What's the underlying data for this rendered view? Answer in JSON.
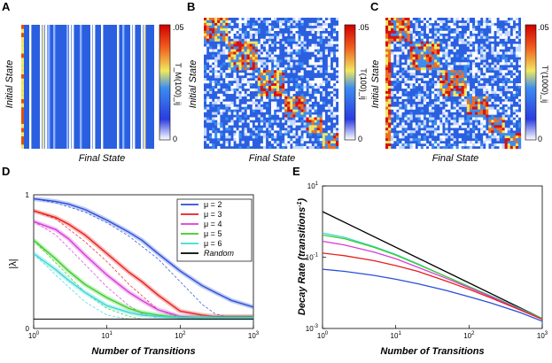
{
  "chart_data": [
    {
      "panel": "A",
      "type": "heatmap",
      "xlabel": "Final State",
      "ylabel": "Initial State",
      "colorbar": {
        "label": "T_M(100)_ij",
        "min": "0",
        "max": ".05"
      },
      "colors": {
        "low": "#2a5fe0",
        "mid": "#f0e88a",
        "high": "#e01010"
      },
      "description_kind": "random-walk transition matrix after 100 steps"
    },
    {
      "panel": "B",
      "type": "heatmap",
      "xlabel": "Final State",
      "ylabel": "Initial State",
      "colorbar": {
        "label": "T(100)_ij",
        "min": "0",
        "max": ".05"
      }
    },
    {
      "panel": "C",
      "type": "heatmap",
      "xlabel": "Final State",
      "ylabel": "Initial State",
      "colorbar": {
        "label": "T'(1000)_ij",
        "min": "0",
        "max": ".05"
      }
    },
    {
      "panel": "D",
      "type": "line",
      "xscale": "log",
      "xlim": [
        1,
        1000
      ],
      "ylim": [
        0,
        1
      ],
      "xlabel": "Number of Transitions",
      "ylabel": "|λ|",
      "xticks": [
        {
          "v": 1,
          "base": "10",
          "exp": "0"
        },
        {
          "v": 10,
          "base": "10",
          "exp": "1"
        },
        {
          "v": 100,
          "base": "10",
          "exp": "2"
        },
        {
          "v": 1000,
          "base": "10",
          "exp": "3"
        }
      ],
      "yticks": [
        {
          "v": 0,
          "label": "0"
        },
        {
          "v": 1,
          "label": "1"
        }
      ],
      "series": [
        {
          "name": "μ = 2",
          "color": "#2a4fd8",
          "x": [
            1,
            2,
            3,
            5,
            10,
            20,
            30,
            50,
            100,
            200,
            300,
            500,
            1000
          ],
          "y": [
            0.97,
            0.95,
            0.93,
            0.89,
            0.81,
            0.72,
            0.66,
            0.56,
            0.43,
            0.32,
            0.27,
            0.21,
            0.16
          ]
        },
        {
          "name": "μ = 3",
          "color": "#e81e1e",
          "x": [
            1,
            2,
            3,
            5,
            10,
            20,
            30,
            50,
            100,
            200,
            300,
            500,
            1000
          ],
          "y": [
            0.88,
            0.83,
            0.78,
            0.7,
            0.56,
            0.42,
            0.35,
            0.25,
            0.13,
            0.1,
            0.09,
            0.09,
            0.09
          ]
        },
        {
          "name": "μ = 4",
          "color": "#d83cd8",
          "x": [
            1,
            2,
            3,
            5,
            10,
            20,
            30,
            50,
            100,
            200,
            300,
            500,
            1000
          ],
          "y": [
            0.8,
            0.74,
            0.67,
            0.55,
            0.4,
            0.27,
            0.21,
            0.14,
            0.09,
            0.08,
            0.08,
            0.08,
            0.08
          ]
        },
        {
          "name": "μ = 5",
          "color": "#3ccc28",
          "x": [
            1,
            2,
            3,
            5,
            10,
            20,
            30,
            50,
            100,
            200,
            300,
            500,
            1000
          ],
          "y": [
            0.66,
            0.52,
            0.43,
            0.33,
            0.23,
            0.15,
            0.12,
            0.1,
            0.08,
            0.08,
            0.08,
            0.08,
            0.08
          ]
        },
        {
          "name": "μ = 6",
          "color": "#3cd8d8",
          "x": [
            1,
            2,
            3,
            5,
            10,
            20,
            30,
            50,
            100,
            200,
            300,
            500,
            1000
          ],
          "y": [
            0.56,
            0.44,
            0.36,
            0.27,
            0.17,
            0.12,
            0.1,
            0.09,
            0.08,
            0.08,
            0.08,
            0.08,
            0.08
          ]
        },
        {
          "name": "Random",
          "color": "#000000",
          "x": [
            1,
            1000
          ],
          "y": [
            0.07,
            0.07
          ]
        }
      ],
      "dashed_series": [
        {
          "color": "#2a4fd8",
          "x": [
            1,
            2,
            5,
            10,
            20,
            50,
            100,
            200,
            300,
            500
          ],
          "y": [
            0.97,
            0.94,
            0.87,
            0.79,
            0.69,
            0.52,
            0.35,
            0.18,
            0.11,
            0.08
          ]
        },
        {
          "color": "#e81e1e",
          "x": [
            1,
            2,
            5,
            10,
            20,
            50,
            100,
            200
          ],
          "y": [
            0.88,
            0.82,
            0.65,
            0.5,
            0.33,
            0.14,
            0.08,
            0.07
          ]
        },
        {
          "color": "#d83cd8",
          "x": [
            1,
            2,
            5,
            10,
            20,
            30,
            50
          ],
          "y": [
            0.8,
            0.7,
            0.48,
            0.31,
            0.17,
            0.11,
            0.08
          ]
        },
        {
          "color": "#3ccc28",
          "x": [
            1,
            2,
            5,
            10,
            20,
            30
          ],
          "y": [
            0.66,
            0.49,
            0.27,
            0.15,
            0.09,
            0.07
          ]
        },
        {
          "color": "#3cd8d8",
          "x": [
            1,
            2,
            5,
            10,
            20
          ],
          "y": [
            0.56,
            0.4,
            0.2,
            0.1,
            0.07
          ]
        }
      ],
      "legend_position": "top-right"
    },
    {
      "panel": "E",
      "type": "line",
      "xscale": "log",
      "yscale": "log",
      "xlim": [
        1,
        1000
      ],
      "ylim": [
        0.001,
        10
      ],
      "xlabel": "Number of Transitions",
      "ylabel": "Decay Rate (transitions",
      "ylabel_sup": "-1",
      "ylabel_close": ")",
      "xticks": [
        {
          "v": 1,
          "base": "10",
          "exp": "0"
        },
        {
          "v": 10,
          "base": "10",
          "exp": "1"
        },
        {
          "v": 100,
          "base": "10",
          "exp": "2"
        },
        {
          "v": 1000,
          "base": "10",
          "exp": "3"
        }
      ],
      "yticks": [
        {
          "v": 0.001,
          "base": "10",
          "exp": "-3"
        },
        {
          "v": 0.1,
          "base": "10",
          "exp": "-1"
        },
        {
          "v": 10,
          "base": "10",
          "exp": "1"
        }
      ],
      "series": [
        {
          "name": "Random",
          "color": "#000000",
          "x": [
            1,
            1000
          ],
          "y": [
            1.9,
            0.0019
          ]
        },
        {
          "name": "μ = 6",
          "color": "#3cd8d8",
          "x": [
            1,
            2,
            5,
            10,
            20,
            50,
            100,
            200,
            500,
            1000
          ],
          "y": [
            0.48,
            0.36,
            0.2,
            0.12,
            0.065,
            0.028,
            0.015,
            0.0082,
            0.0036,
            0.0019
          ]
        },
        {
          "name": "μ = 5",
          "color": "#3ccc28",
          "x": [
            1,
            2,
            5,
            10,
            20,
            50,
            100,
            200,
            500,
            1000
          ],
          "y": [
            0.42,
            0.33,
            0.19,
            0.115,
            0.063,
            0.028,
            0.015,
            0.008,
            0.0035,
            0.0019
          ]
        },
        {
          "name": "μ = 4",
          "color": "#d83cd8",
          "x": [
            1,
            2,
            5,
            10,
            20,
            50,
            100,
            200,
            500,
            1000
          ],
          "y": [
            0.28,
            0.22,
            0.14,
            0.09,
            0.052,
            0.025,
            0.014,
            0.0078,
            0.0034,
            0.0018
          ]
        },
        {
          "name": "μ = 3",
          "color": "#e81e1e",
          "x": [
            1,
            2,
            5,
            10,
            20,
            50,
            100,
            200,
            500,
            1000
          ],
          "y": [
            0.13,
            0.11,
            0.08,
            0.058,
            0.04,
            0.021,
            0.0125,
            0.0072,
            0.0033,
            0.0018
          ]
        },
        {
          "name": "μ = 2",
          "color": "#2a4fd8",
          "x": [
            1,
            2,
            5,
            10,
            20,
            50,
            100,
            200,
            500,
            1000
          ],
          "y": [
            0.046,
            0.04,
            0.031,
            0.024,
            0.018,
            0.0115,
            0.0078,
            0.0052,
            0.0028,
            0.0016
          ]
        }
      ]
    }
  ]
}
